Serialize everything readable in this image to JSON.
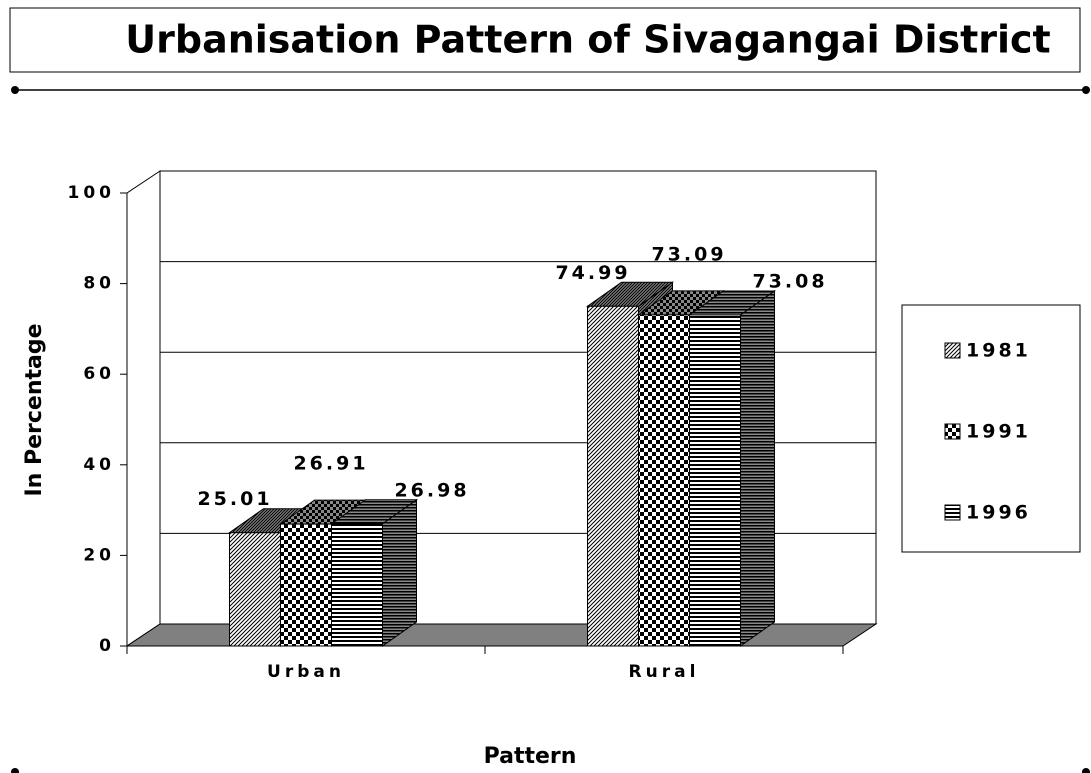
{
  "chart_data": {
    "type": "bar3d",
    "title": "Urbanisation Pattern of Sivagangai District",
    "x_label": "Pattern",
    "y_label": "In Percentage",
    "categories": [
      "Urban",
      "Rural"
    ],
    "series": [
      {
        "name": "1981",
        "color": "#000000",
        "pattern": "diagonal",
        "values": [
          25.01,
          74.99
        ]
      },
      {
        "name": "1991",
        "color": "#000000",
        "pattern": "checker",
        "values": [
          26.91,
          73.09
        ]
      },
      {
        "name": "1996",
        "color": "#000000",
        "pattern": "horizontal",
        "values": [
          26.98,
          73.08
        ]
      }
    ],
    "ylim": [
      0,
      100
    ],
    "yticks": [
      0,
      20,
      40,
      60,
      80,
      100
    ],
    "grid": true,
    "legend": "right"
  }
}
